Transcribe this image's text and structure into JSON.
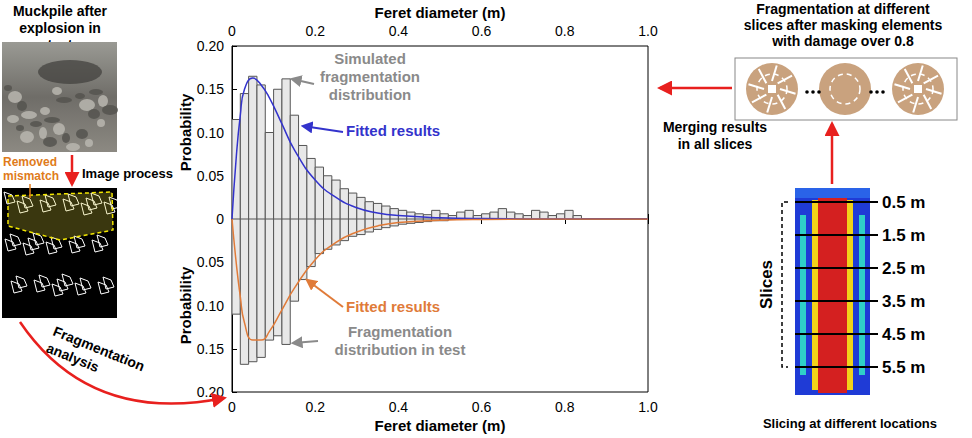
{
  "chart_data": [
    {
      "type": "histogram",
      "xlabel": "Feret diameter (m)",
      "xlim": [
        0,
        1
      ],
      "xticks": [
        0,
        0.2,
        0.4,
        0.6,
        0.8,
        {
          "value": 1,
          "label": "1.0"
        }
      ],
      "ylabel": "Probability",
      "ylim": [
        0,
        0.2
      ],
      "yticks": [
        0,
        0.05,
        {
          "value": 0.1,
          "label": "0.10"
        },
        0.15,
        {
          "value": 0.2,
          "label": "0.20"
        }
      ],
      "series": [
        {
          "name": "Simulated fragmentation distribution",
          "type": "bar",
          "color": "#e8e8e8",
          "bins": [
            0,
            0.02,
            0.04,
            0.06,
            0.08,
            0.1,
            0.12,
            0.14,
            0.16,
            0.18,
            0.2,
            0.22,
            0.24,
            0.26,
            0.28,
            0.3,
            0.32,
            0.34,
            0.36,
            0.38,
            0.4,
            0.42,
            0.44,
            0.46,
            0.48,
            0.5,
            0.52,
            0.54,
            0.56,
            0.58,
            0.6,
            0.62,
            0.64,
            0.66,
            0.68,
            0.7,
            0.72,
            0.74,
            0.76,
            0.78,
            0.8,
            0.82,
            0.84,
            0.86,
            0.88,
            0.9,
            0.92,
            0.94,
            0.96,
            0.98,
            1.0
          ],
          "values": [
            0.115,
            0.145,
            0.165,
            0.155,
            0.1,
            0.15,
            0.162,
            0.12,
            0.085,
            0.07,
            0.06,
            0.05,
            0.045,
            0.035,
            0.03,
            0.025,
            0.02,
            0.018,
            0.015,
            0.012,
            0.01,
            0.008,
            0.006,
            0.005,
            0.01,
            0.006,
            0.004,
            0.008,
            0.01,
            0.004,
            0.006,
            0.008,
            0.012,
            0.008,
            0.006,
            0.004,
            0.01,
            0.008,
            0.004,
            0.006,
            0.01,
            0.004,
            0,
            0,
            0,
            0,
            0,
            0,
            0,
            0
          ]
        },
        {
          "name": "Fitted results",
          "type": "line",
          "color": "#3333cc",
          "x": [
            0,
            0.01,
            0.02,
            0.03,
            0.05,
            0.07,
            0.09,
            0.12,
            0.15,
            0.2,
            0.25,
            0.3,
            0.35,
            0.4,
            0.5,
            0.6,
            0.8,
            1.0
          ],
          "values": [
            0,
            0.07,
            0.12,
            0.15,
            0.163,
            0.155,
            0.14,
            0.11,
            0.08,
            0.045,
            0.025,
            0.013,
            0.007,
            0.004,
            0.0015,
            0.0005,
            0,
            0
          ]
        }
      ]
    },
    {
      "type": "histogram",
      "xlabel": "Feret diameter (m)",
      "xlim": [
        0,
        1
      ],
      "xticks": [
        0,
        0.2,
        0.4,
        0.6,
        0.8,
        {
          "value": 1,
          "label": "1.0"
        }
      ],
      "ylabel": "Probability",
      "ylim": [
        0,
        0.2
      ],
      "yticks": [
        0.05,
        {
          "value": 0.1,
          "label": "0.10"
        },
        0.15,
        {
          "value": 0.2,
          "label": "0.20"
        }
      ],
      "series": [
        {
          "name": "Fragmentation distribution in test",
          "type": "bar",
          "color": "#e8e8e8",
          "bins": [
            0,
            0.02,
            0.04,
            0.06,
            0.08,
            0.1,
            0.12,
            0.14,
            0.16,
            0.18,
            0.2,
            0.22,
            0.24,
            0.26,
            0.28,
            0.3,
            0.32,
            0.34,
            0.36,
            0.38,
            0.4,
            0.42,
            0.44,
            0.46,
            0.48,
            0.5,
            0.52,
            0.54,
            0.56,
            0.58,
            0.6,
            0.62,
            0.64,
            0.66,
            0.68,
            0.7,
            0.72,
            0.74,
            0.76,
            0.78,
            0.8,
            0.82,
            0.84,
            0.86,
            0.88,
            0.9,
            0.92,
            0.94,
            0.96,
            0.98,
            1.0
          ],
          "values": [
            0.11,
            0.168,
            0.165,
            0.16,
            0.14,
            0.135,
            0.145,
            0.095,
            0.07,
            0.055,
            0.04,
            0.035,
            0.03,
            0.025,
            0.02,
            0.018,
            0.015,
            0.012,
            0.01,
            0.008,
            0.006,
            0.005,
            0.004,
            0.003,
            0.002,
            0.002,
            0,
            0,
            0,
            0,
            0,
            0,
            0,
            0,
            0,
            0,
            0,
            0,
            0,
            0,
            0,
            0,
            0,
            0,
            0,
            0,
            0,
            0,
            0,
            0
          ]
        },
        {
          "name": "Fitted results",
          "type": "line",
          "color": "#e07b39",
          "x": [
            0,
            0.01,
            0.02,
            0.03,
            0.05,
            0.07,
            0.09,
            0.12,
            0.15,
            0.2,
            0.25,
            0.3,
            0.35,
            0.4,
            0.5,
            0.6,
            0.8,
            1.0
          ],
          "values": [
            0,
            0.05,
            0.09,
            0.12,
            0.14,
            0.14,
            0.13,
            0.105,
            0.08,
            0.047,
            0.027,
            0.015,
            0.008,
            0.004,
            0.0015,
            0.0005,
            0,
            0
          ]
        }
      ]
    }
  ],
  "diagram": {
    "left": {
      "title": "Muckpile after explosion in test",
      "mismatch_label": "Removed mismatch",
      "step": "Image process",
      "analysis": "Fragmentation analysis"
    },
    "right": {
      "title": "Fragmentation at different slices after masking elements with damage over 0.8",
      "merge": "Merging results in all slices",
      "slices_label": "Slices",
      "slice_depths": [
        "0.5 m",
        "1.5 m",
        "2.5 m",
        "3.5 m",
        "4.5 m",
        "5.5 m"
      ],
      "caption": "Slicing at different locations"
    }
  }
}
